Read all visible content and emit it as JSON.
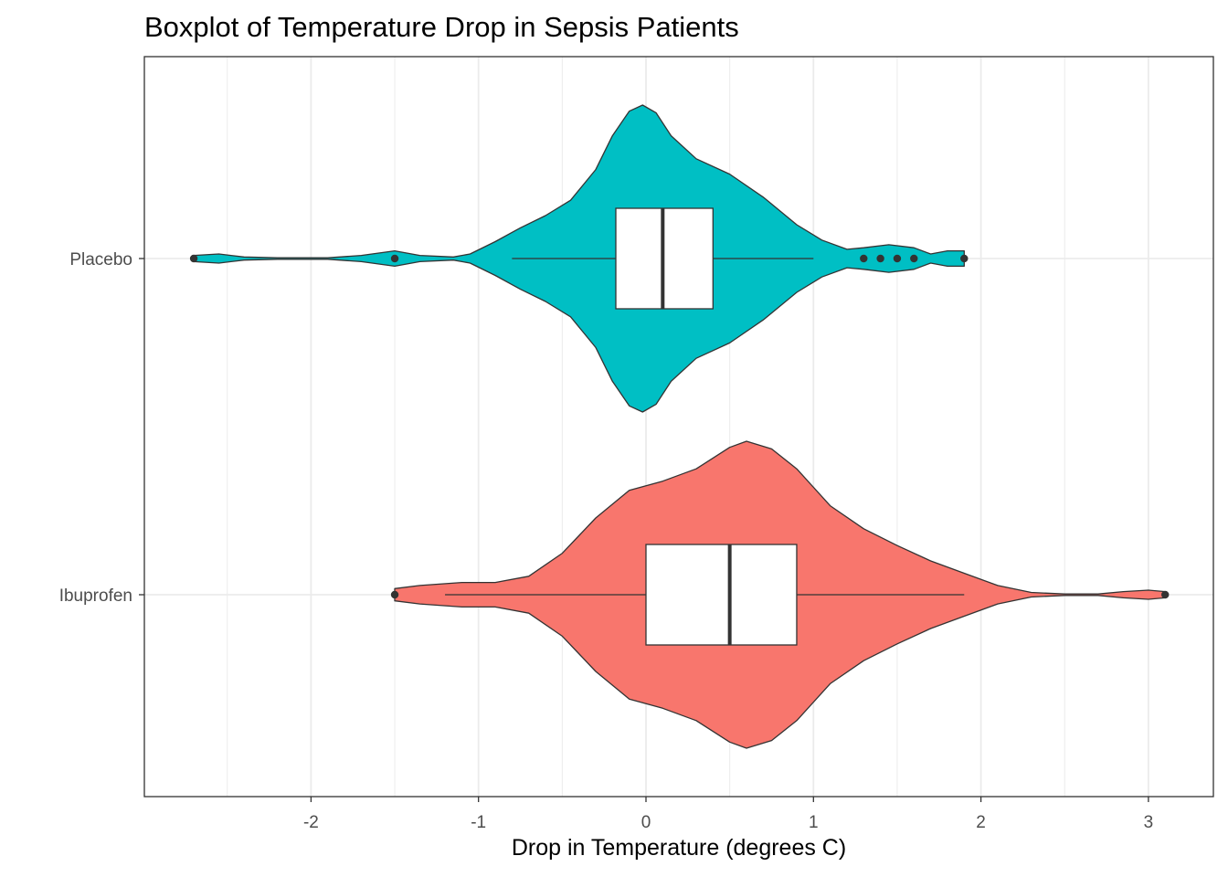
{
  "chart_data": {
    "type": "violin+boxplot",
    "title": "Boxplot of Temperature Drop in Sepsis Patients",
    "xlabel": "Drop in Temperature (degrees C)",
    "ylabel": "",
    "xlim": [
      -2.9,
      3.4
    ],
    "x_ticks": [
      -2,
      -1,
      0,
      1,
      2,
      3
    ],
    "x_tick_labels": [
      "-2",
      "-1",
      "0",
      "1",
      "2",
      "3"
    ],
    "categories": [
      "Placebo",
      "Ibuprofen"
    ],
    "grid": true,
    "legend": "none",
    "series": [
      {
        "name": "Placebo",
        "color": "#00BFC4",
        "box": {
          "whisker_low": -0.8,
          "q1": -0.18,
          "median": 0.1,
          "q3": 0.4,
          "whisker_high": 1.0
        },
        "outliers": [
          -2.7,
          -1.5,
          1.3,
          1.4,
          1.5,
          1.6,
          1.9
        ],
        "density": [
          [
            -2.7,
            0.02
          ],
          [
            -2.55,
            0.03
          ],
          [
            -2.4,
            0.01
          ],
          [
            -2.2,
            0.005
          ],
          [
            -1.9,
            0.005
          ],
          [
            -1.7,
            0.02
          ],
          [
            -1.5,
            0.05
          ],
          [
            -1.35,
            0.02
          ],
          [
            -1.15,
            0.01
          ],
          [
            -1.05,
            0.03
          ],
          [
            -0.9,
            0.11
          ],
          [
            -0.75,
            0.2
          ],
          [
            -0.6,
            0.28
          ],
          [
            -0.45,
            0.38
          ],
          [
            -0.3,
            0.58
          ],
          [
            -0.2,
            0.8
          ],
          [
            -0.1,
            0.96
          ],
          [
            -0.02,
            1.0
          ],
          [
            0.06,
            0.95
          ],
          [
            0.15,
            0.8
          ],
          [
            0.3,
            0.65
          ],
          [
            0.5,
            0.55
          ],
          [
            0.7,
            0.4
          ],
          [
            0.9,
            0.22
          ],
          [
            1.05,
            0.12
          ],
          [
            1.2,
            0.06
          ],
          [
            1.3,
            0.07
          ],
          [
            1.45,
            0.09
          ],
          [
            1.6,
            0.07
          ],
          [
            1.7,
            0.03
          ],
          [
            1.8,
            0.05
          ],
          [
            1.9,
            0.05
          ]
        ]
      },
      {
        "name": "Ibuprofen",
        "color": "#F8766D",
        "box": {
          "whisker_low": -1.2,
          "q1": 0.0,
          "median": 0.5,
          "q3": 0.9,
          "whisker_high": 1.9
        },
        "outliers": [
          -1.5,
          3.1
        ],
        "density": [
          [
            -1.5,
            0.04
          ],
          [
            -1.35,
            0.06
          ],
          [
            -1.1,
            0.08
          ],
          [
            -0.9,
            0.08
          ],
          [
            -0.7,
            0.12
          ],
          [
            -0.5,
            0.27
          ],
          [
            -0.3,
            0.5
          ],
          [
            -0.1,
            0.68
          ],
          [
            0.1,
            0.74
          ],
          [
            0.3,
            0.82
          ],
          [
            0.5,
            0.96
          ],
          [
            0.6,
            1.0
          ],
          [
            0.75,
            0.95
          ],
          [
            0.9,
            0.82
          ],
          [
            1.1,
            0.58
          ],
          [
            1.3,
            0.43
          ],
          [
            1.5,
            0.32
          ],
          [
            1.7,
            0.22
          ],
          [
            1.9,
            0.14
          ],
          [
            2.1,
            0.06
          ],
          [
            2.3,
            0.015
          ],
          [
            2.5,
            0.005
          ],
          [
            2.7,
            0.005
          ],
          [
            2.85,
            0.02
          ],
          [
            3.0,
            0.03
          ],
          [
            3.1,
            0.02
          ]
        ]
      }
    ]
  },
  "colors": {
    "panel_border": "#333333",
    "grid": "#ebebeb",
    "box_fill": "#ffffff",
    "line": "#333333"
  }
}
